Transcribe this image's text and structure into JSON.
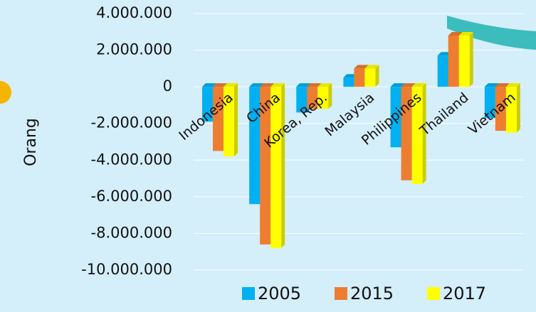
{
  "chart_data": {
    "type": "bar",
    "y_label": "Orang",
    "categories": [
      "Indonesia",
      "China",
      "Korea, Rep.",
      "Malaysia",
      "Philippines",
      "Thailand",
      "Vietnam"
    ],
    "series": [
      {
        "name": "2005",
        "color": "#00b0f0",
        "values": [
          -1900000,
          -6400000,
          -1400000,
          500000,
          -3300000,
          1700000,
          -1700000
        ]
      },
      {
        "name": "2015",
        "color": "#ed7d31",
        "values": [
          -3500000,
          -8600000,
          -1200000,
          1000000,
          -5100000,
          2800000,
          -2400000
        ]
      },
      {
        "name": "2017",
        "color": "#ffff00",
        "values": [
          -3800000,
          -8800000,
          -1200000,
          1000000,
          -5300000,
          2800000,
          -2500000
        ]
      }
    ],
    "ylim": [
      -10000000,
      4000000
    ],
    "yticks": [
      {
        "value": -10000000,
        "label": "-10.000.000"
      },
      {
        "value": -8000000,
        "label": "-8.000.000"
      },
      {
        "value": -6000000,
        "label": "-6.000.000"
      },
      {
        "value": -4000000,
        "label": "-4.000.000"
      },
      {
        "value": -2000000,
        "label": "-2.000.000"
      },
      0,
      {
        "value": 2000000,
        "label": "2.000.000"
      },
      {
        "value": 4000000,
        "label": "4.000.000"
      }
    ],
    "grid": true,
    "legend": "bottom"
  }
}
